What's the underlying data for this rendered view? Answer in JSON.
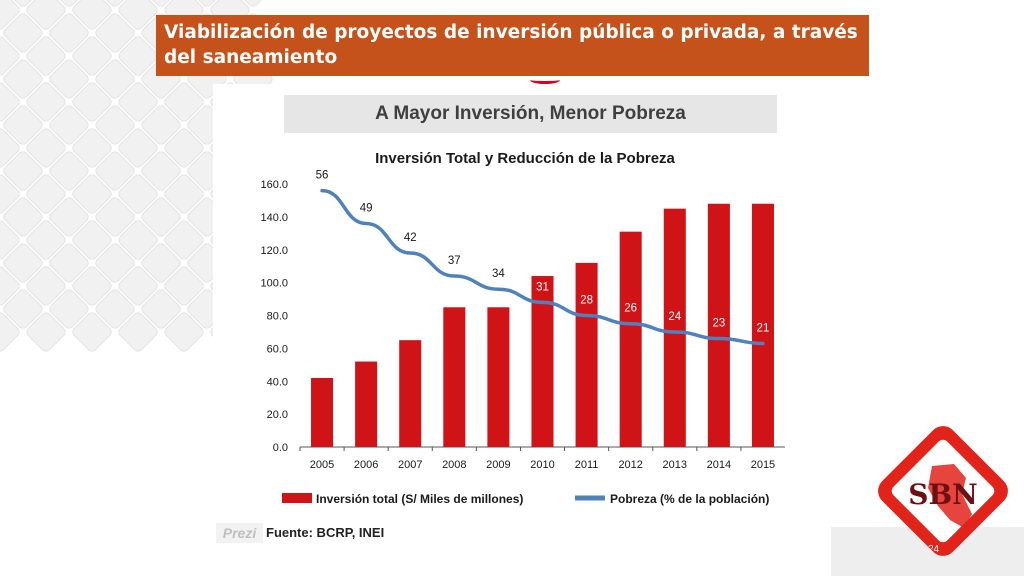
{
  "slide": {
    "title": "Viabilización de proyectos de inversión pública o privada, a través del saneamiento",
    "page_number": "24",
    "logo_text": "SBN",
    "prezi_mark": "Prezi"
  },
  "chart_header": "A Mayor Inversión, Menor Pobreza",
  "source_note": "Fuente: BCRP, INEI",
  "colors": {
    "banner": "#c5521a",
    "bar": "#d01317",
    "line": "#4f81bd",
    "logo_red": "#e2231a"
  },
  "chart_data": {
    "type": "bar",
    "title": "Inversión Total y Reducción de la Pobreza",
    "categories": [
      "2005",
      "2006",
      "2007",
      "2008",
      "2009",
      "2010",
      "2011",
      "2012",
      "2013",
      "2014",
      "2015"
    ],
    "series": [
      {
        "name": "Inversión total (S/ Miles de millones)",
        "type": "bar",
        "values": [
          42,
          52,
          65,
          85,
          85,
          104,
          112,
          131,
          145,
          148,
          148
        ]
      },
      {
        "name": "Pobreza (% de la población)",
        "type": "line",
        "values": [
          56,
          49,
          42,
          37,
          34,
          31,
          28,
          26,
          24,
          23,
          21
        ],
        "curve_values": [
          156,
          136,
          118,
          104,
          96,
          88,
          80,
          75,
          70,
          66,
          63
        ]
      }
    ],
    "ylim": [
      0,
      160
    ],
    "yticks": [
      "0.0",
      "20.0",
      "40.0",
      "60.0",
      "80.0",
      "100.0",
      "120.0",
      "140.0",
      "160.0"
    ],
    "legend_position": "bottom"
  }
}
